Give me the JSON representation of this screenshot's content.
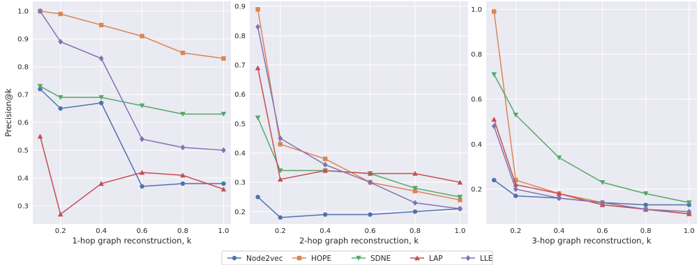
{
  "series_styles": [
    {
      "name": "Node2vec",
      "color": "#4c72b0",
      "marker": "circle"
    },
    {
      "name": "HOPE",
      "color": "#dd8452",
      "marker": "square"
    },
    {
      "name": "SDNE",
      "color": "#55a868",
      "marker": "triangle-down"
    },
    {
      "name": "LAP",
      "color": "#c44e52",
      "marker": "triangle-up"
    },
    {
      "name": "LLE",
      "color": "#8172b3",
      "marker": "diamond"
    }
  ],
  "chart_data": [
    {
      "type": "line",
      "title": "",
      "xlabel": "1-hop graph reconstruction, k",
      "ylabel": "Precision@k",
      "x": [
        0.1,
        0.2,
        0.4,
        0.6,
        0.8,
        1.0
      ],
      "xticks": [
        0.2,
        0.4,
        0.6,
        0.8,
        1.0
      ],
      "xtick_labels": [
        "0.2",
        "0.4",
        "0.6",
        "0.8",
        "1.0"
      ],
      "xlim": [
        0.064,
        1.036
      ],
      "ylim": [
        0.235,
        1.035
      ],
      "yticks": [
        0.3,
        0.4,
        0.5,
        0.6,
        0.7,
        0.8,
        0.9,
        1.0
      ],
      "ytick_labels": [
        "0.3",
        "0.4",
        "0.5",
        "0.6",
        "0.7",
        "0.8",
        "0.9",
        "1.0"
      ],
      "grid": true,
      "series": [
        {
          "name": "Node2vec",
          "values": [
            0.72,
            0.65,
            0.67,
            0.37,
            0.38,
            0.38
          ]
        },
        {
          "name": "HOPE",
          "values": [
            1.0,
            0.99,
            0.95,
            0.91,
            0.85,
            0.83
          ]
        },
        {
          "name": "SDNE",
          "values": [
            0.73,
            0.69,
            0.69,
            0.66,
            0.63,
            0.63
          ]
        },
        {
          "name": "LAP",
          "values": [
            0.55,
            0.27,
            0.38,
            0.42,
            0.41,
            0.36
          ]
        },
        {
          "name": "LLE",
          "values": [
            1.0,
            0.89,
            0.83,
            0.54,
            0.51,
            0.5
          ]
        }
      ]
    },
    {
      "type": "line",
      "title": "",
      "xlabel": "2-hop graph reconstruction, k",
      "ylabel": "",
      "x": [
        0.1,
        0.2,
        0.4,
        0.6,
        0.8,
        1.0
      ],
      "xticks": [
        0.2,
        0.4,
        0.6,
        0.8,
        1.0
      ],
      "xtick_labels": [
        "0.2",
        "0.4",
        "0.6",
        "0.8",
        "1.0"
      ],
      "xlim": [
        0.064,
        1.036
      ],
      "ylim": [
        0.158,
        0.917
      ],
      "yticks": [
        0.2,
        0.3,
        0.4,
        0.5,
        0.6,
        0.7,
        0.8,
        0.9
      ],
      "ytick_labels": [
        "0.2",
        "0.3",
        "0.4",
        "0.5",
        "0.6",
        "0.7",
        "0.8",
        "0.9"
      ],
      "grid": true,
      "series": [
        {
          "name": "Node2vec",
          "values": [
            0.25,
            0.18,
            0.19,
            0.19,
            0.2,
            0.21
          ]
        },
        {
          "name": "HOPE",
          "values": [
            0.89,
            0.43,
            0.38,
            0.3,
            0.27,
            0.24
          ]
        },
        {
          "name": "SDNE",
          "values": [
            0.52,
            0.34,
            0.34,
            0.33,
            0.28,
            0.25
          ]
        },
        {
          "name": "LAP",
          "values": [
            0.69,
            0.31,
            0.34,
            0.33,
            0.33,
            0.3
          ]
        },
        {
          "name": "LLE",
          "values": [
            0.83,
            0.45,
            0.36,
            0.3,
            0.23,
            0.21
          ]
        }
      ]
    },
    {
      "type": "line",
      "title": "",
      "xlabel": "3-hop graph reconstruction, k",
      "ylabel": "",
      "x": [
        0.1,
        0.2,
        0.4,
        0.6,
        0.8,
        1.0
      ],
      "xticks": [
        0.2,
        0.4,
        0.6,
        0.8,
        1.0
      ],
      "xtick_labels": [
        "0.2",
        "0.4",
        "0.6",
        "0.8",
        "1.0"
      ],
      "xlim": [
        0.064,
        1.036
      ],
      "ylim": [
        0.045,
        1.035
      ],
      "yticks": [
        0.2,
        0.4,
        0.6,
        0.8,
        1.0
      ],
      "ytick_labels": [
        "0.2",
        "0.4",
        "0.6",
        "0.8",
        "1.0"
      ],
      "grid": true,
      "series": [
        {
          "name": "Node2vec",
          "values": [
            0.24,
            0.17,
            0.16,
            0.14,
            0.13,
            0.13
          ]
        },
        {
          "name": "HOPE",
          "values": [
            0.99,
            0.24,
            0.18,
            0.14,
            0.11,
            0.09
          ]
        },
        {
          "name": "SDNE",
          "values": [
            0.71,
            0.53,
            0.34,
            0.23,
            0.18,
            0.14
          ]
        },
        {
          "name": "LAP",
          "values": [
            0.51,
            0.22,
            0.18,
            0.13,
            0.11,
            0.09
          ]
        },
        {
          "name": "LLE",
          "values": [
            0.48,
            0.2,
            0.16,
            0.14,
            0.11,
            0.1
          ]
        }
      ]
    }
  ],
  "legend": {
    "placement": "bottom-center",
    "entries": [
      "Node2vec",
      "HOPE",
      "SDNE",
      "LAP",
      "LLE"
    ]
  }
}
